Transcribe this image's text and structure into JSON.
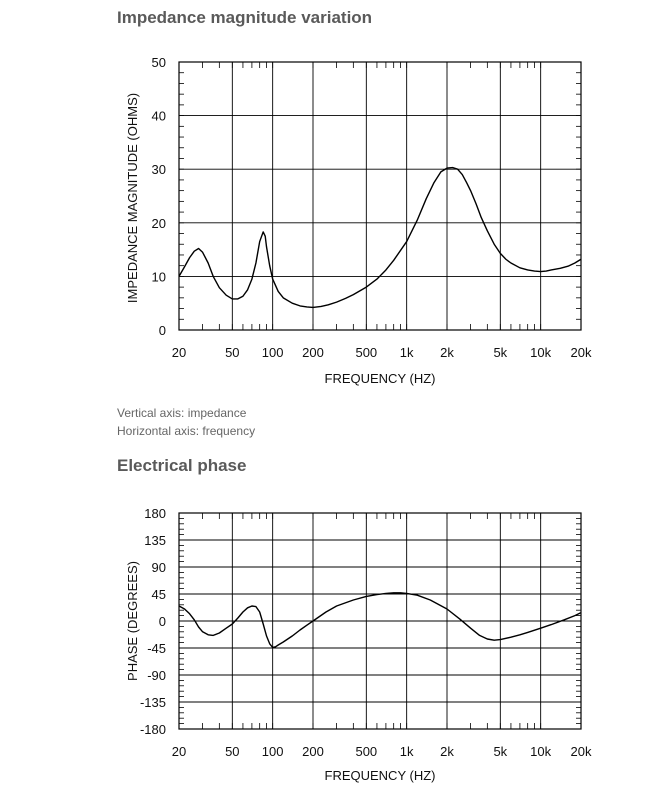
{
  "sections": [
    {
      "title": "Impedance magnitude variation",
      "captions": [
        "Vertical axis: impedance",
        "Horizontal axis: frequency"
      ]
    },
    {
      "title": "Electrical phase"
    }
  ],
  "chart_data": [
    {
      "type": "line",
      "title": "",
      "xlabel": "FREQUENCY  (HZ)",
      "ylabel": "IMPEDANCE MAGNITUDE  (OHMS)",
      "xscale": "log",
      "xlim": [
        20,
        20000
      ],
      "ylim": [
        0,
        50
      ],
      "grid": true,
      "x_ticks": [
        20,
        50,
        100,
        200,
        500,
        1000,
        2000,
        5000,
        10000,
        20000
      ],
      "x_tick_labels": [
        "20",
        "50",
        "100",
        "200",
        "500",
        "1k",
        "2k",
        "5k",
        "10k",
        "20k"
      ],
      "y_ticks": [
        0,
        10,
        20,
        30,
        40,
        50
      ],
      "y_tick_labels": [
        "0",
        "10",
        "20",
        "30",
        "40",
        "50"
      ],
      "series": [
        {
          "color": "#000000",
          "x": [
            20,
            22,
            24,
            26,
            28,
            30,
            33,
            36,
            40,
            45,
            50,
            55,
            60,
            65,
            70,
            75,
            80,
            85,
            88,
            90,
            95,
            100,
            110,
            120,
            140,
            160,
            180,
            200,
            230,
            260,
            300,
            350,
            400,
            500,
            600,
            700,
            800,
            1000,
            1200,
            1400,
            1600,
            1800,
            2000,
            2200,
            2400,
            2600,
            2800,
            3000,
            3300,
            3600,
            4000,
            4500,
            5000,
            5500,
            6000,
            7000,
            8000,
            9000,
            10000,
            11000,
            12000,
            14000,
            16000,
            18000,
            20000
          ],
          "y": [
            10,
            11.8,
            13.5,
            14.7,
            15.2,
            14.5,
            12.5,
            10,
            7.9,
            6.5,
            5.8,
            5.8,
            6.3,
            7.5,
            9.5,
            12.5,
            16.5,
            18.3,
            17.5,
            15.5,
            12,
            9.5,
            7.2,
            6,
            5,
            4.5,
            4.3,
            4.2,
            4.4,
            4.7,
            5.2,
            5.9,
            6.6,
            8,
            9.5,
            11.2,
            13,
            16.5,
            20.5,
            24.5,
            27.5,
            29.5,
            30.2,
            30.3,
            30,
            29,
            27.5,
            26,
            23.5,
            21,
            18.5,
            16,
            14.3,
            13.2,
            12.5,
            11.6,
            11.2,
            11,
            10.9,
            11,
            11.2,
            11.5,
            11.9,
            12.5,
            13.2
          ]
        }
      ]
    },
    {
      "type": "line",
      "title": "",
      "xlabel": "FREQUENCY  (HZ)",
      "ylabel": "PHASE  (DEGREES)",
      "xscale": "log",
      "xlim": [
        20,
        20000
      ],
      "ylim": [
        -180,
        180
      ],
      "grid": true,
      "x_ticks": [
        20,
        50,
        100,
        200,
        500,
        1000,
        2000,
        5000,
        10000,
        20000
      ],
      "x_tick_labels": [
        "20",
        "50",
        "100",
        "200",
        "500",
        "1k",
        "2k",
        "5k",
        "10k",
        "20k"
      ],
      "y_ticks": [
        -180,
        -135,
        -90,
        -45,
        0,
        45,
        90,
        135,
        180
      ],
      "y_tick_labels": [
        "-180",
        "-135",
        "-90",
        "-45",
        "0",
        "45",
        "90",
        "135",
        "180"
      ],
      "series": [
        {
          "color": "#000000",
          "x": [
            20,
            22,
            24,
            26,
            28,
            30,
            33,
            36,
            40,
            45,
            50,
            55,
            60,
            65,
            70,
            75,
            80,
            85,
            90,
            95,
            100,
            105,
            110,
            120,
            140,
            160,
            180,
            200,
            250,
            300,
            400,
            500,
            600,
            700,
            800,
            900,
            1000,
            1200,
            1500,
            2000,
            2500,
            3000,
            3500,
            4000,
            4500,
            5000,
            6000,
            7000,
            8000,
            10000,
            12000,
            15000,
            18000,
            20000
          ],
          "y": [
            25,
            20,
            12,
            2,
            -10,
            -18,
            -23,
            -24,
            -20,
            -12,
            -5,
            5,
            15,
            22,
            25,
            24,
            15,
            -5,
            -25,
            -38,
            -44,
            -43,
            -40,
            -35,
            -25,
            -15,
            -7,
            0,
            15,
            25,
            35,
            41,
            44,
            46,
            47,
            47,
            46,
            43,
            35,
            20,
            3,
            -12,
            -24,
            -30,
            -32,
            -31,
            -27,
            -23,
            -19,
            -12,
            -6,
            2,
            9,
            14
          ]
        }
      ]
    }
  ]
}
